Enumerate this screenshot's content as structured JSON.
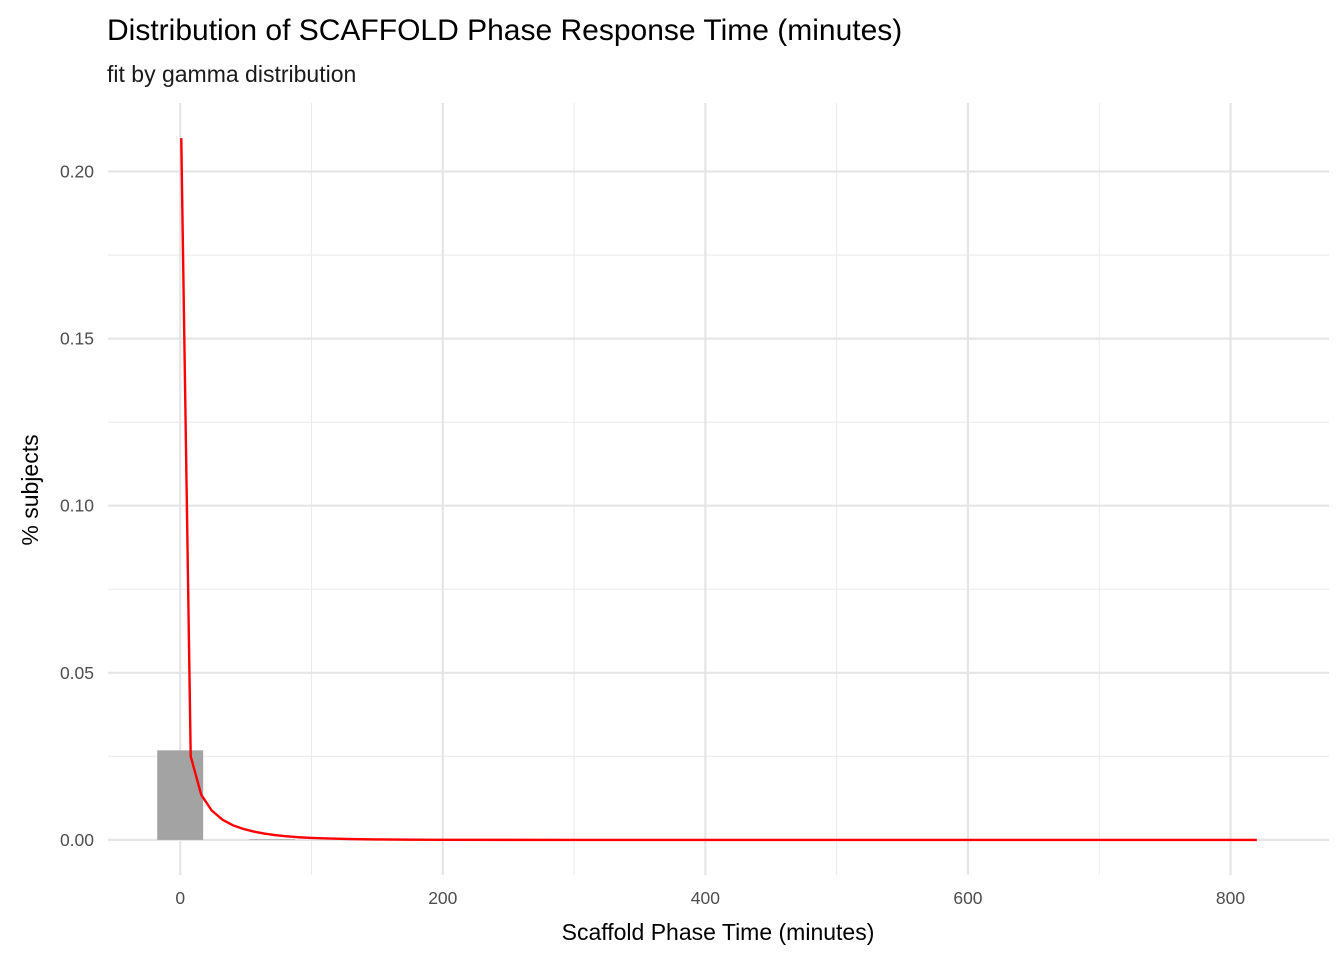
{
  "chart_data": {
    "type": "histogram",
    "title": "Distribution of SCAFFOLD Phase Response Time (minutes)",
    "subtitle": "fit by gamma distribution",
    "xlabel": "Scaffold Phase Time (minutes)",
    "ylabel": "% subjects",
    "xlim": [
      -55,
      875
    ],
    "ylim": [
      -0.0105,
      0.2205
    ],
    "x_ticks": [
      0,
      200,
      400,
      600,
      800
    ],
    "x_minor_ticks": [
      100,
      300,
      500,
      700
    ],
    "y_ticks": [
      0.0,
      0.05,
      0.1,
      0.15,
      0.2
    ],
    "y_minor_ticks": [
      0.025,
      0.075,
      0.125,
      0.175
    ],
    "x_tick_labels": [
      "0",
      "200",
      "400",
      "600",
      "800"
    ],
    "y_tick_labels": [
      "0.00",
      "0.05",
      "0.10",
      "0.15",
      "0.20"
    ],
    "grid": true,
    "bar_color": "#a3a3a3",
    "line_color": "#ff0000",
    "histogram": {
      "bins": [
        {
          "x0": -17.5,
          "x1": 17.5,
          "density": 0.0268
        },
        {
          "x0": 52.5,
          "x1": 87.5,
          "density": 0.0002
        }
      ]
    },
    "gamma_fit": {
      "x": [
        0.8,
        8,
        16,
        24,
        32,
        40,
        48,
        56,
        64,
        72,
        80,
        90,
        100,
        115,
        130,
        150,
        175,
        200,
        250,
        300,
        400,
        500,
        600,
        700,
        820
      ],
      "y": [
        0.21,
        0.025,
        0.0135,
        0.0088,
        0.0061,
        0.0044,
        0.0033,
        0.0025,
        0.0019,
        0.00145,
        0.0011,
        0.0008,
        0.0006,
        0.0004,
        0.00025,
        0.00015,
        8e-05,
        4e-05,
        1e-05,
        3e-06,
        0,
        0,
        0,
        0,
        0
      ]
    }
  }
}
